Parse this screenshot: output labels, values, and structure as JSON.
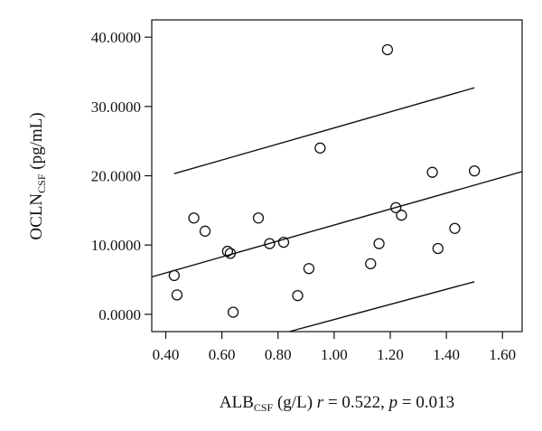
{
  "chart_data": {
    "type": "scatter",
    "title": "",
    "xlabel": {
      "main": "ALB",
      "sub": "CSF",
      "unit": " (g/L) ",
      "r_symbol": "r",
      "r_text": " = 0.522, ",
      "p_symbol": "p",
      "p_text": " = 0.013"
    },
    "ylabel": {
      "main": "OCLN",
      "sub": "CSF",
      "unit": " (pg/mL)"
    },
    "xlim": [
      0.35,
      1.67
    ],
    "ylim": [
      -2.5,
      42.5
    ],
    "xticks": [
      0.4,
      0.6,
      0.8,
      1.0,
      1.2,
      1.4,
      1.6
    ],
    "xtick_labels": [
      "0.40",
      "0.60",
      "0.80",
      "1.00",
      "1.20",
      "1.40",
      "1.60"
    ],
    "yticks": [
      0,
      10,
      20,
      30,
      40
    ],
    "ytick_labels": [
      "0.0000",
      "10.0000",
      "20.0000",
      "30.0000",
      "40.0000"
    ],
    "grid": false,
    "points": {
      "x": [
        0.43,
        0.44,
        0.5,
        0.54,
        0.62,
        0.63,
        0.64,
        0.73,
        0.77,
        0.82,
        0.87,
        0.91,
        0.95,
        1.13,
        1.16,
        1.19,
        1.22,
        1.24,
        1.35,
        1.37,
        1.43,
        1.5
      ],
      "y": [
        5.6,
        2.8,
        13.9,
        12.0,
        9.1,
        8.8,
        0.3,
        13.9,
        10.2,
        10.4,
        2.7,
        6.6,
        24.0,
        7.3,
        10.2,
        38.2,
        15.4,
        14.3,
        20.5,
        9.5,
        12.4,
        20.7
      ]
    },
    "regression_line": {
      "x": [
        0.35,
        1.67
      ],
      "y": [
        5.4,
        20.6
      ]
    },
    "upper_band": {
      "x": [
        0.43,
        1.5
      ],
      "y": [
        20.3,
        32.7
      ]
    },
    "lower_band": {
      "x": [
        0.84,
        1.5
      ],
      "y": [
        -2.5,
        4.7
      ]
    }
  }
}
